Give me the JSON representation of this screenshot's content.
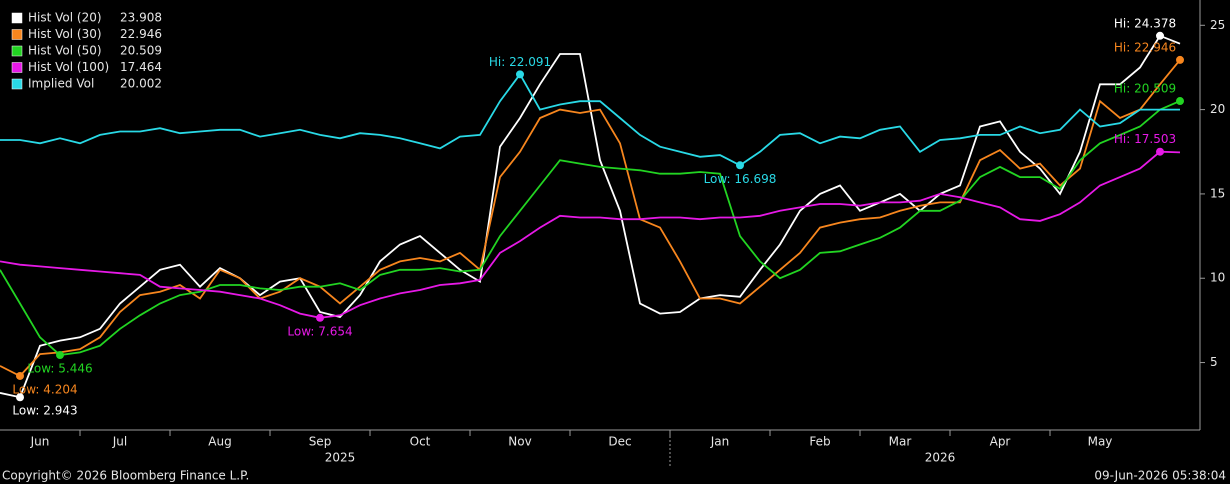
{
  "chart_data": {
    "type": "line",
    "categories": [
      null,
      null,
      "Jun",
      null,
      null,
      null,
      "Jul",
      null,
      null,
      null,
      null,
      "Aug",
      null,
      null,
      null,
      null,
      "Sep",
      null,
      null,
      null,
      null,
      "Oct",
      null,
      null,
      null,
      null,
      "Nov",
      null,
      null,
      null,
      null,
      "Dec",
      null,
      null,
      null,
      null,
      "Jan",
      null,
      null,
      null,
      null,
      "Feb",
      null,
      null,
      null,
      "Mar",
      null,
      null,
      null,
      null,
      "Apr",
      null,
      null,
      null,
      null,
      "May",
      null,
      null,
      null,
      null
    ],
    "years": [
      null,
      null,
      null,
      null,
      null,
      null,
      null,
      null,
      null,
      null,
      null,
      null,
      null,
      null,
      null,
      null,
      null,
      "2025",
      null,
      null,
      null,
      null,
      null,
      null,
      null,
      null,
      null,
      null,
      null,
      null,
      null,
      null,
      null,
      null,
      null,
      null,
      null,
      null,
      null,
      null,
      null,
      null,
      null,
      null,
      null,
      null,
      null,
      "2026",
      null,
      null,
      null,
      null,
      null,
      null,
      null,
      null,
      null,
      null,
      null,
      null
    ],
    "ylim": [
      1,
      26.5
    ],
    "yticks": [
      5,
      10,
      15,
      20,
      25
    ],
    "series": [
      {
        "name": "Hist Vol (20)",
        "color": "#ffffff",
        "hi_label": "Hi: 24.378",
        "low_label": "Low: 2.943",
        "values": [
          3.2,
          2.943,
          6.0,
          6.3,
          6.5,
          7.0,
          8.5,
          9.5,
          10.5,
          10.8,
          9.5,
          10.6,
          10.0,
          9.0,
          9.8,
          10.0,
          8.0,
          7.7,
          9.0,
          11.0,
          12.0,
          12.5,
          11.5,
          10.5,
          9.8,
          17.8,
          19.5,
          21.5,
          23.3,
          23.3,
          17.0,
          14.0,
          8.5,
          7.9,
          8.0,
          8.8,
          9.0,
          8.9,
          10.5,
          12.0,
          14.0,
          15.0,
          15.5,
          14.0,
          14.5,
          15.0,
          14.0,
          15.0,
          15.5,
          19.0,
          19.3,
          17.5,
          16.5,
          15.0,
          17.5,
          21.5,
          21.5,
          22.5,
          24.378,
          23.908
        ]
      },
      {
        "name": "Hist Vol (30)",
        "color": "#f7861e",
        "hi_label": "Hi: 22.946",
        "low_label": "Low: 4.204",
        "values": [
          4.8,
          4.204,
          5.5,
          5.6,
          5.8,
          6.5,
          8.0,
          9.0,
          9.2,
          9.6,
          8.8,
          10.5,
          10.0,
          8.8,
          9.2,
          10.0,
          9.5,
          8.5,
          9.5,
          10.5,
          11.0,
          11.2,
          11.0,
          11.5,
          10.5,
          16.0,
          17.5,
          19.5,
          20.0,
          19.8,
          20.0,
          18.0,
          13.5,
          13.0,
          11.0,
          8.8,
          8.8,
          8.5,
          9.5,
          10.5,
          11.5,
          13.0,
          13.3,
          13.5,
          13.6,
          14.0,
          14.3,
          14.5,
          14.5,
          17.0,
          17.6,
          16.5,
          16.8,
          15.5,
          16.5,
          20.5,
          19.5,
          20.0,
          21.5,
          22.946
        ]
      },
      {
        "name": "Hist Vol (50)",
        "color": "#22d422",
        "hi_label": "Hi: 20.509",
        "low_label": "Low: 5.446",
        "values": [
          10.5,
          8.5,
          6.5,
          5.446,
          5.6,
          6.0,
          7.0,
          7.8,
          8.5,
          9.0,
          9.2,
          9.6,
          9.6,
          9.4,
          9.3,
          9.5,
          9.5,
          9.7,
          9.3,
          10.2,
          10.5,
          10.5,
          10.6,
          10.4,
          10.5,
          12.5,
          14.0,
          15.5,
          17.0,
          16.8,
          16.6,
          16.5,
          16.4,
          16.2,
          16.2,
          16.3,
          16.2,
          12.5,
          11.0,
          10.0,
          10.5,
          11.5,
          11.6,
          12.0,
          12.4,
          13.0,
          14.0,
          14.0,
          14.6,
          16.0,
          16.6,
          16.0,
          16.0,
          15.3,
          17.0,
          18.0,
          18.5,
          19.0,
          20.0,
          20.509
        ]
      },
      {
        "name": "Hist Vol (100)",
        "color": "#e619e6",
        "hi_label": "Hi: 17.503",
        "low_label": "Low: 7.654",
        "values": [
          11.0,
          10.8,
          10.7,
          10.6,
          10.5,
          10.4,
          10.3,
          10.2,
          9.5,
          9.4,
          9.3,
          9.2,
          9.0,
          8.8,
          8.4,
          7.9,
          7.654,
          7.8,
          8.4,
          8.8,
          9.1,
          9.3,
          9.6,
          9.7,
          9.9,
          11.5,
          12.2,
          13.0,
          13.7,
          13.6,
          13.6,
          13.5,
          13.5,
          13.6,
          13.6,
          13.5,
          13.6,
          13.6,
          13.7,
          14.0,
          14.2,
          14.4,
          14.4,
          14.3,
          14.5,
          14.5,
          14.6,
          15.0,
          14.8,
          14.5,
          14.2,
          13.5,
          13.4,
          13.8,
          14.5,
          15.5,
          16.0,
          16.5,
          17.503,
          17.464
        ]
      },
      {
        "name": "Implied Vol",
        "color": "#29d9e6",
        "hi_label": "Hi: 22.091",
        "low_label": "Low: 16.698",
        "values": [
          18.2,
          18.2,
          18.0,
          18.3,
          18.0,
          18.5,
          18.7,
          18.7,
          18.9,
          18.6,
          18.7,
          18.8,
          18.8,
          18.4,
          18.6,
          18.8,
          18.5,
          18.3,
          18.6,
          18.5,
          18.3,
          18.0,
          17.7,
          18.4,
          18.5,
          20.5,
          22.091,
          20.0,
          20.3,
          20.5,
          20.5,
          19.5,
          18.5,
          17.8,
          17.5,
          17.2,
          17.3,
          16.698,
          17.5,
          18.5,
          18.6,
          18.0,
          18.4,
          18.3,
          18.8,
          19.0,
          17.5,
          18.2,
          18.3,
          18.5,
          18.5,
          19.0,
          18.6,
          18.8,
          20.0,
          19.0,
          19.2,
          20.0,
          20.0,
          20.002
        ]
      }
    ],
    "legend": "top-left",
    "footer": {
      "copyright": "Copyright© 2026 Bloomberg Finance L.P.",
      "timestamp": "09-Jun-2026 05:38:04"
    }
  }
}
